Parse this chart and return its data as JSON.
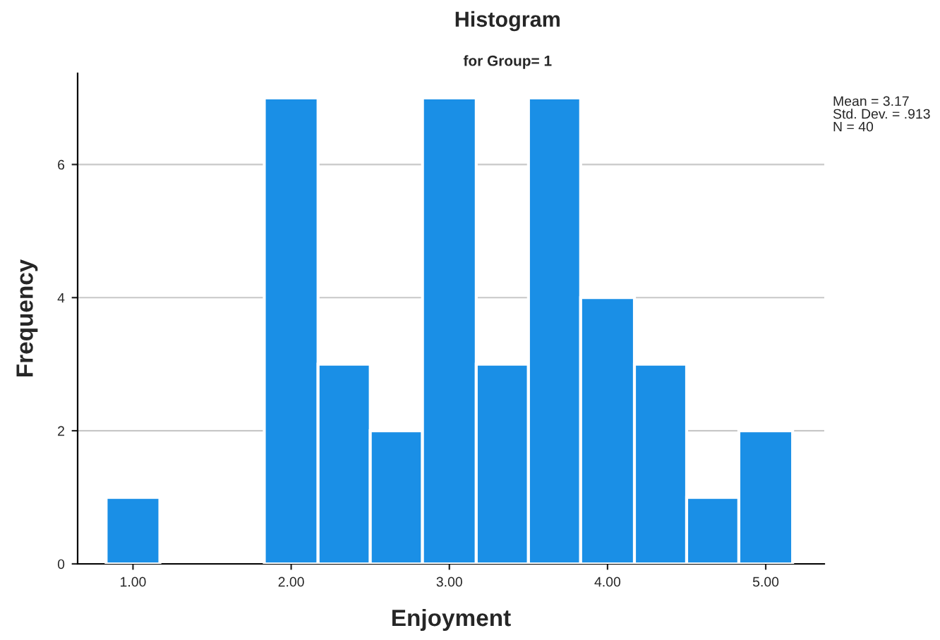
{
  "chart_data": {
    "type": "histogram",
    "title": "Histogram",
    "subtitle": "for Group= 1",
    "xlabel": "Enjoyment",
    "ylabel": "Frequency",
    "bins": [
      0.83,
      1.17,
      1.83,
      2.17,
      2.5,
      2.83,
      3.17,
      3.5,
      3.83,
      4.17,
      4.5,
      4.83,
      5.17
    ],
    "values": [
      1,
      0,
      7,
      3,
      2,
      7,
      3,
      7,
      4,
      3,
      1,
      2
    ],
    "color": "#1a8fe6",
    "xlim": [
      0.65,
      5.37
    ],
    "xticks": [
      {
        "value": 1,
        "label": "1.00"
      },
      {
        "value": 2,
        "label": "2.00"
      },
      {
        "value": 3,
        "label": "3.00"
      },
      {
        "value": 4,
        "label": "4.00"
      },
      {
        "value": 5,
        "label": "5.00"
      }
    ],
    "ylim": [
      0,
      7.37
    ],
    "yticks": [
      0,
      2,
      4,
      6
    ],
    "grid": "y",
    "annotations": [
      "Mean = 3.17\nStd. Dev. = .913\nN = 40"
    ]
  }
}
